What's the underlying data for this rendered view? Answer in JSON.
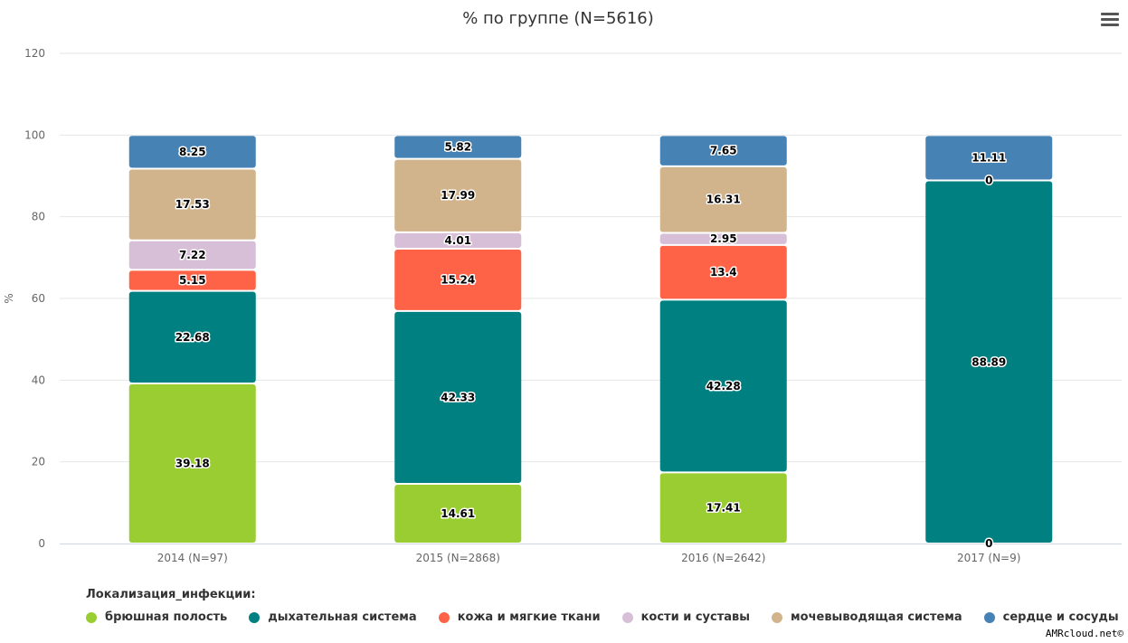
{
  "menu_icon": "hamburger-menu-icon",
  "credit": "AMRcloud.net©",
  "legend": {
    "title": "Локализация_инфекции:"
  },
  "chart_data": {
    "type": "bar",
    "stacked": true,
    "title": "% по группе (N=5616)",
    "ylabel": "%",
    "ylim": [
      0,
      120
    ],
    "yticks": [
      0,
      20,
      40,
      60,
      80,
      100,
      120
    ],
    "grid": true,
    "legend_position": "bottom-left",
    "categories": [
      "2014 (N=97)",
      "2015 (N=2868)",
      "2016 (N=2642)",
      "2017 (N=9)"
    ],
    "series": [
      {
        "name": "брюшная полость",
        "color": "#9acd32",
        "values": [
          39.18,
          14.61,
          17.41,
          0
        ],
        "labels": [
          "39.18",
          "14.61",
          "17.41",
          "0"
        ]
      },
      {
        "name": "дыхательная система",
        "color": "#008080",
        "values": [
          22.68,
          42.33,
          42.28,
          88.89
        ],
        "labels": [
          "22.68",
          "42.33",
          "42.28",
          "88.89"
        ]
      },
      {
        "name": "кожа и мягкие ткани",
        "color": "#ff6347",
        "values": [
          5.15,
          15.24,
          13.4,
          0
        ],
        "labels": [
          "5.15",
          "15.24",
          "13.4",
          "0"
        ]
      },
      {
        "name": "кости и суставы",
        "color": "#d8bfd8",
        "values": [
          7.22,
          4.01,
          2.95,
          0
        ],
        "labels": [
          "7.22",
          "4.01",
          "2.95",
          null
        ]
      },
      {
        "name": "мочевыводящая система",
        "color": "#d2b48c",
        "values": [
          17.53,
          17.99,
          16.31,
          0
        ],
        "labels": [
          "17.53",
          "17.99",
          "16.31",
          null
        ]
      },
      {
        "name": "сердце и сосуды",
        "color": "#4682b4",
        "values": [
          8.25,
          5.82,
          7.65,
          11.11
        ],
        "labels": [
          "8.25",
          "5.82",
          "7.65",
          "11.11"
        ]
      }
    ]
  }
}
